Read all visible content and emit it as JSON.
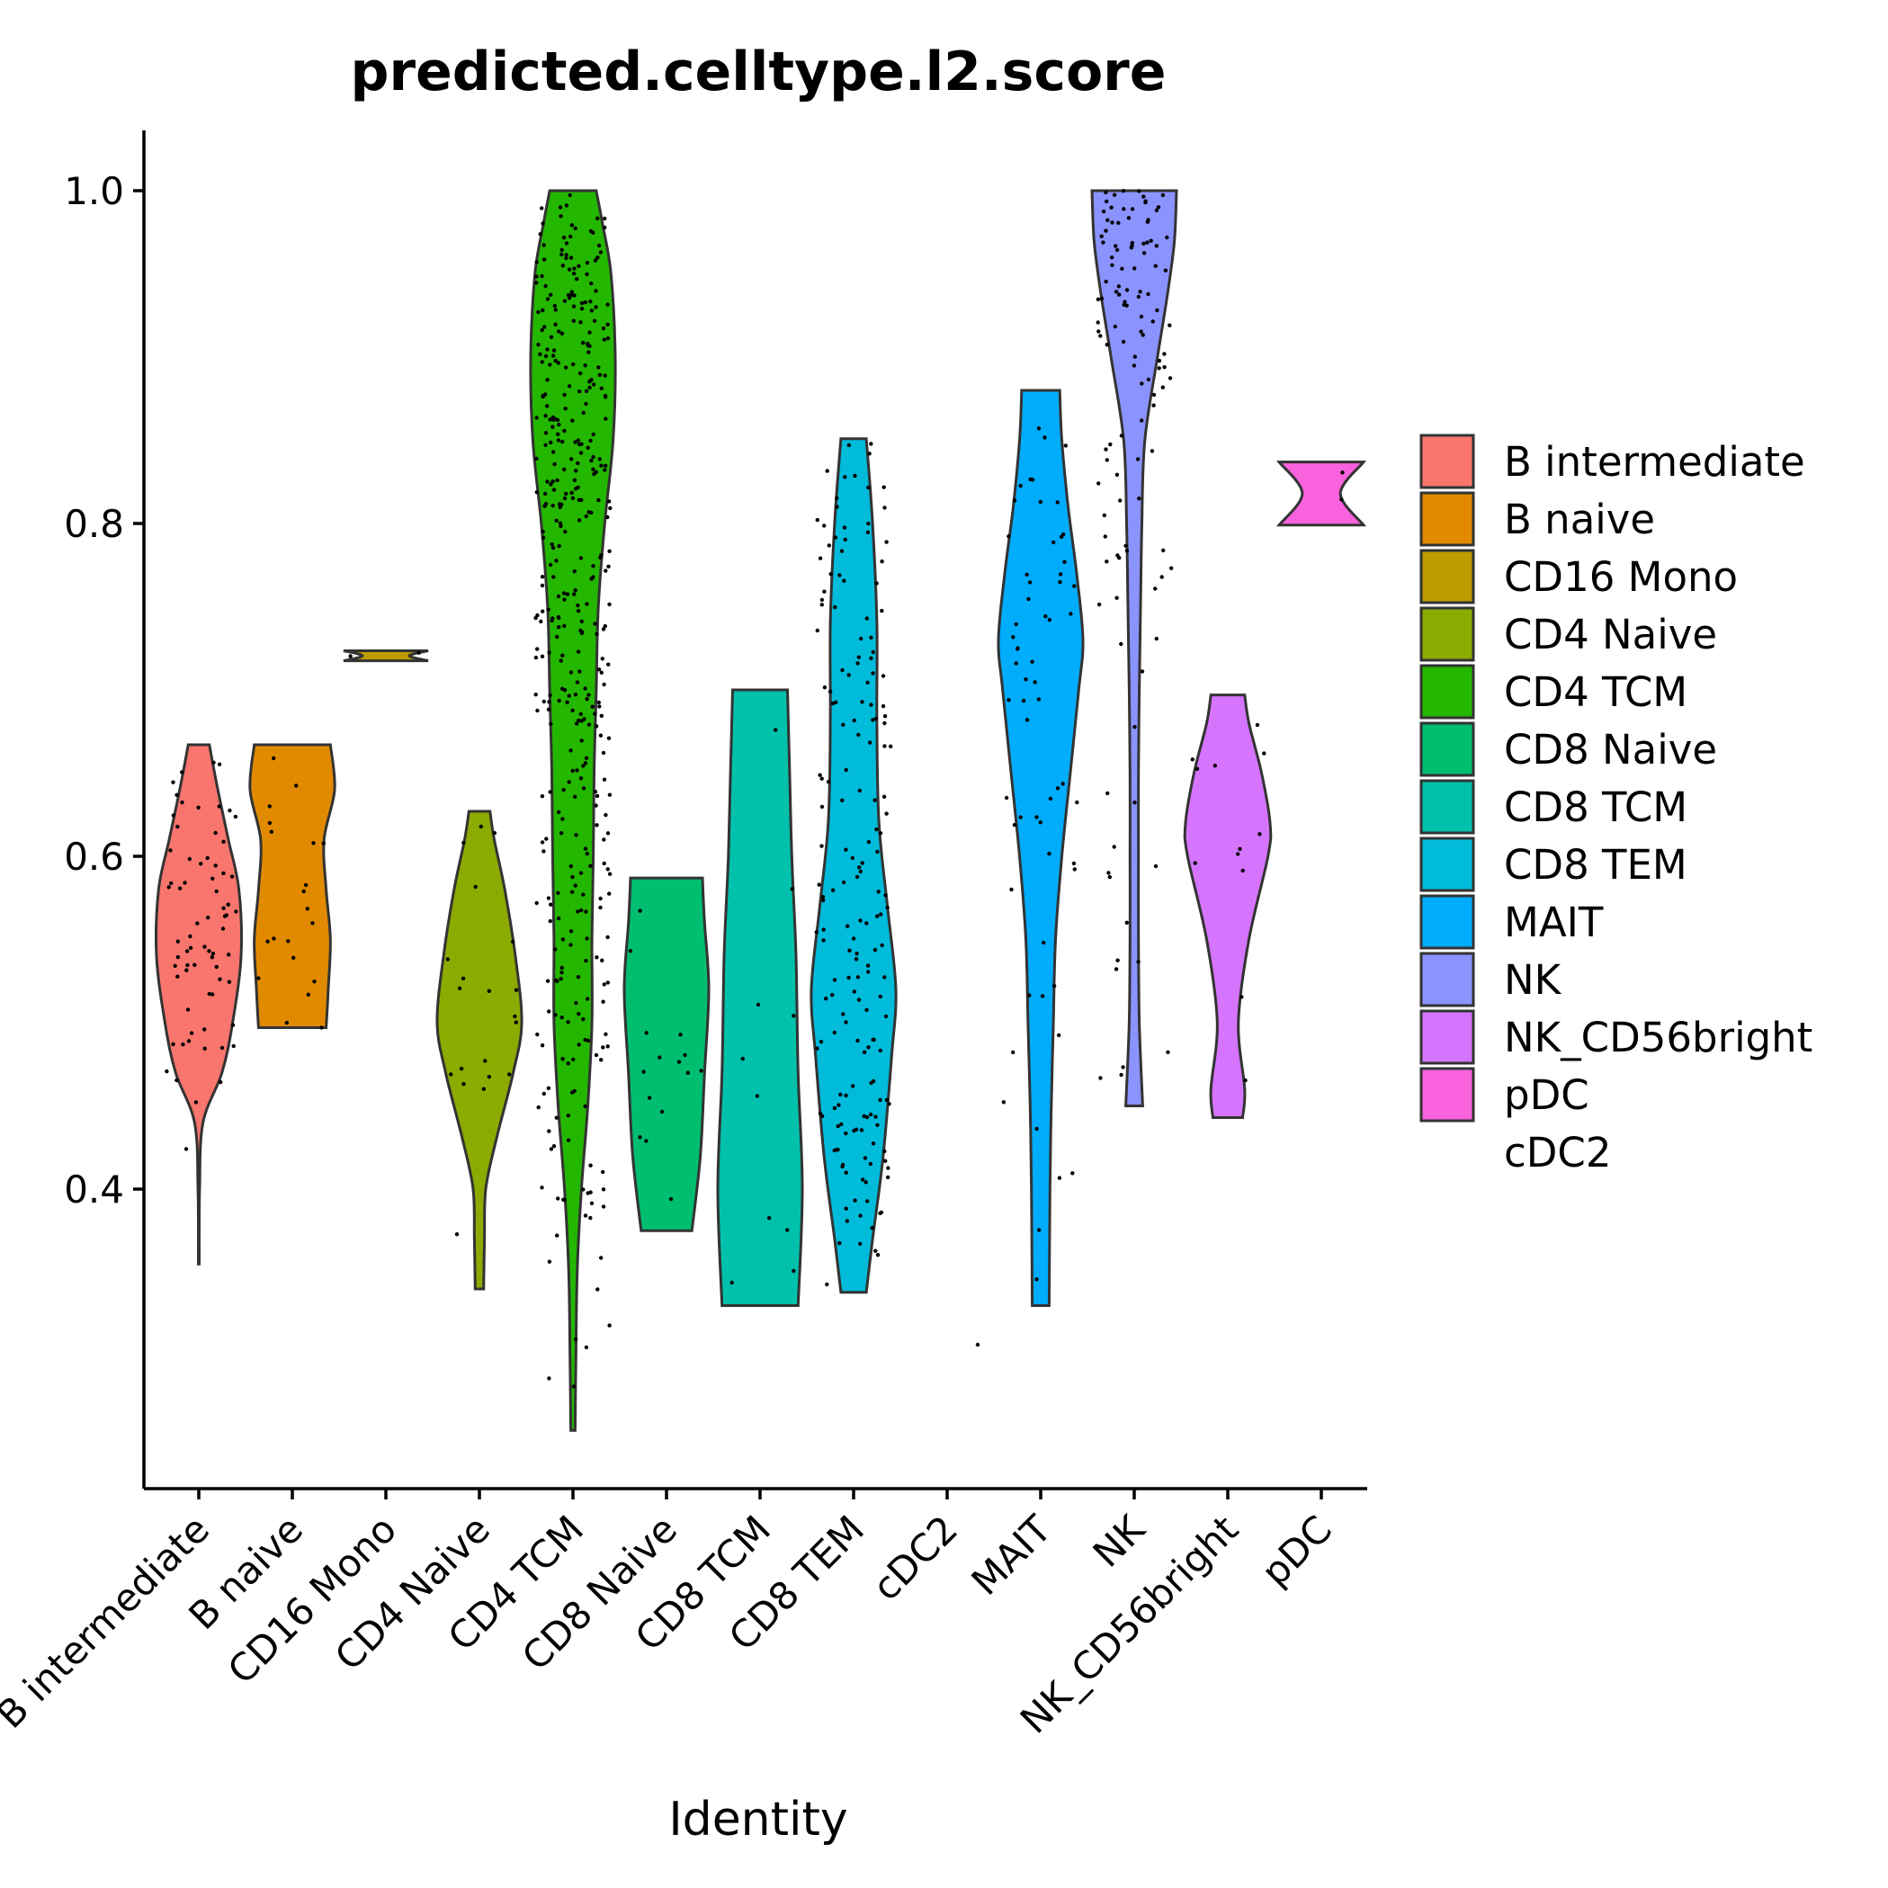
{
  "chart_data": {
    "type": "violin",
    "title": "predicted.celltype.l2.score",
    "xlabel": "Identity",
    "ylabel": "",
    "ylim": [
      0.225,
      1.04
    ],
    "yticks": [
      0.4,
      0.6,
      0.8,
      1.0
    ],
    "ytick_labels": [
      "0.4",
      "0.6",
      "0.8",
      "1.0"
    ],
    "grid": false,
    "legend_position": "right",
    "categories": [
      "B intermediate",
      "B naive",
      "CD16 Mono",
      "CD4 Naive",
      "CD4 TCM",
      "CD8 Naive",
      "CD8 TCM",
      "CD8 TEM",
      "cDC2",
      "MAIT",
      "NK",
      "NK_CD56bright",
      "pDC"
    ],
    "series": [
      {
        "name": "B intermediate",
        "color": "#F8766D",
        "n": 70,
        "profile": [
          [
            0.355,
            0.01
          ],
          [
            0.4,
            0.02
          ],
          [
            0.44,
            0.1
          ],
          [
            0.47,
            0.55
          ],
          [
            0.5,
            0.8
          ],
          [
            0.54,
            1.0
          ],
          [
            0.58,
            0.95
          ],
          [
            0.61,
            0.7
          ],
          [
            0.64,
            0.45
          ],
          [
            0.667,
            0.25
          ]
        ]
      },
      {
        "name": "B naive",
        "color": "#E18A00",
        "n": 20,
        "profile": [
          [
            0.497,
            0.8
          ],
          [
            0.52,
            0.85
          ],
          [
            0.55,
            0.9
          ],
          [
            0.58,
            0.8
          ],
          [
            0.61,
            0.75
          ],
          [
            0.64,
            1.0
          ],
          [
            0.667,
            0.9
          ]
        ]
      },
      {
        "name": "CD16 Mono",
        "color": "#BE9C00",
        "n": 2,
        "profile": [
          [
            0.7175,
            1.0
          ],
          [
            0.7205,
            0.55
          ],
          [
            0.7235,
            1.0
          ]
        ]
      },
      {
        "name": "CD4 Naive",
        "color": "#8CAB00",
        "n": 20,
        "profile": [
          [
            0.34,
            0.1
          ],
          [
            0.37,
            0.12
          ],
          [
            0.4,
            0.15
          ],
          [
            0.43,
            0.4
          ],
          [
            0.47,
            0.8
          ],
          [
            0.5,
            1.0
          ],
          [
            0.54,
            0.85
          ],
          [
            0.58,
            0.6
          ],
          [
            0.61,
            0.35
          ],
          [
            0.627,
            0.25
          ]
        ]
      },
      {
        "name": "CD4 TCM",
        "color": "#24B700",
        "n": 420,
        "profile": [
          [
            0.255,
            0.05
          ],
          [
            0.3,
            0.07
          ],
          [
            0.35,
            0.1
          ],
          [
            0.4,
            0.2
          ],
          [
            0.45,
            0.35
          ],
          [
            0.5,
            0.45
          ],
          [
            0.55,
            0.45
          ],
          [
            0.6,
            0.48
          ],
          [
            0.65,
            0.5
          ],
          [
            0.7,
            0.55
          ],
          [
            0.75,
            0.6
          ],
          [
            0.8,
            0.75
          ],
          [
            0.85,
            0.95
          ],
          [
            0.9,
            1.0
          ],
          [
            0.95,
            0.9
          ],
          [
            0.98,
            0.7
          ],
          [
            1.0,
            0.55
          ]
        ]
      },
      {
        "name": "CD8 Naive",
        "color": "#00BE70",
        "n": 15,
        "profile": [
          [
            0.375,
            0.6
          ],
          [
            0.42,
            0.8
          ],
          [
            0.47,
            0.9
          ],
          [
            0.52,
            1.0
          ],
          [
            0.56,
            0.9
          ],
          [
            0.587,
            0.85
          ]
        ]
      },
      {
        "name": "CD8 TCM",
        "color": "#00C1AB",
        "n": 10,
        "profile": [
          [
            0.33,
            0.9
          ],
          [
            0.4,
            1.0
          ],
          [
            0.47,
            0.9
          ],
          [
            0.54,
            0.85
          ],
          [
            0.6,
            0.75
          ],
          [
            0.65,
            0.7
          ],
          [
            0.7,
            0.65
          ]
        ]
      },
      {
        "name": "CD8 TEM",
        "color": "#00BBDA",
        "n": 180,
        "profile": [
          [
            0.338,
            0.3
          ],
          [
            0.37,
            0.45
          ],
          [
            0.42,
            0.7
          ],
          [
            0.48,
            0.9
          ],
          [
            0.52,
            1.0
          ],
          [
            0.57,
            0.8
          ],
          [
            0.62,
            0.6
          ],
          [
            0.68,
            0.55
          ],
          [
            0.74,
            0.55
          ],
          [
            0.8,
            0.45
          ],
          [
            0.851,
            0.3
          ]
        ]
      },
      {
        "name": "cDC2",
        "color": "#00ACFC",
        "n": 1,
        "profile": []
      },
      {
        "name": "MAIT",
        "color": "#00ACFC",
        "n": 60,
        "profile": [
          [
            0.33,
            0.2
          ],
          [
            0.4,
            0.22
          ],
          [
            0.45,
            0.25
          ],
          [
            0.5,
            0.3
          ],
          [
            0.55,
            0.35
          ],
          [
            0.6,
            0.5
          ],
          [
            0.65,
            0.7
          ],
          [
            0.7,
            0.9
          ],
          [
            0.73,
            1.0
          ],
          [
            0.77,
            0.85
          ],
          [
            0.81,
            0.65
          ],
          [
            0.85,
            0.5
          ],
          [
            0.88,
            0.45
          ]
        ]
      },
      {
        "name": "NK",
        "color": "#8B93FF",
        "n": 120,
        "profile": [
          [
            0.45,
            0.2
          ],
          [
            0.5,
            0.12
          ],
          [
            0.55,
            0.1
          ],
          [
            0.6,
            0.1
          ],
          [
            0.65,
            0.1
          ],
          [
            0.7,
            0.12
          ],
          [
            0.75,
            0.15
          ],
          [
            0.8,
            0.18
          ],
          [
            0.85,
            0.25
          ],
          [
            0.9,
            0.55
          ],
          [
            0.94,
            0.8
          ],
          [
            0.97,
            0.95
          ],
          [
            1.0,
            1.0
          ]
        ]
      },
      {
        "name": "NK_CD56bright",
        "color": "#D575FE",
        "n": 12,
        "profile": [
          [
            0.443,
            0.35
          ],
          [
            0.46,
            0.4
          ],
          [
            0.5,
            0.25
          ],
          [
            0.55,
            0.5
          ],
          [
            0.6,
            0.95
          ],
          [
            0.62,
            1.0
          ],
          [
            0.65,
            0.8
          ],
          [
            0.68,
            0.5
          ],
          [
            0.697,
            0.4
          ]
        ]
      },
      {
        "name": "pDC",
        "color": "#F962DD",
        "n": 2,
        "profile": [
          [
            0.799,
            1.0
          ],
          [
            0.818,
            0.45
          ],
          [
            0.837,
            1.0
          ]
        ]
      }
    ],
    "legend": [
      "B intermediate",
      "B naive",
      "CD16 Mono",
      "CD4 Naive",
      "CD4 TCM",
      "CD8 Naive",
      "CD8 TCM",
      "CD8 TEM",
      "MAIT",
      "NK",
      "NK_CD56bright",
      "pDC",
      "cDC2"
    ],
    "legend_colors": [
      "#F8766D",
      "#E18A00",
      "#BE9C00",
      "#8CAB00",
      "#24B700",
      "#00BE70",
      "#00C1AB",
      "#00BBDA",
      "#00ACFC",
      "#8B93FF",
      "#D575FE",
      "#F962DD",
      ""
    ],
    "xtick_labels": [
      "B intermediate",
      "B naive",
      "CD16 Mono",
      "CD4 Naive",
      "CD4 TCM",
      "CD8 Naive",
      "CD8 TCM",
      "CD8 TEM",
      "cDC2",
      "MAIT",
      "NK",
      "NK_CD56bright",
      "pDC"
    ]
  }
}
